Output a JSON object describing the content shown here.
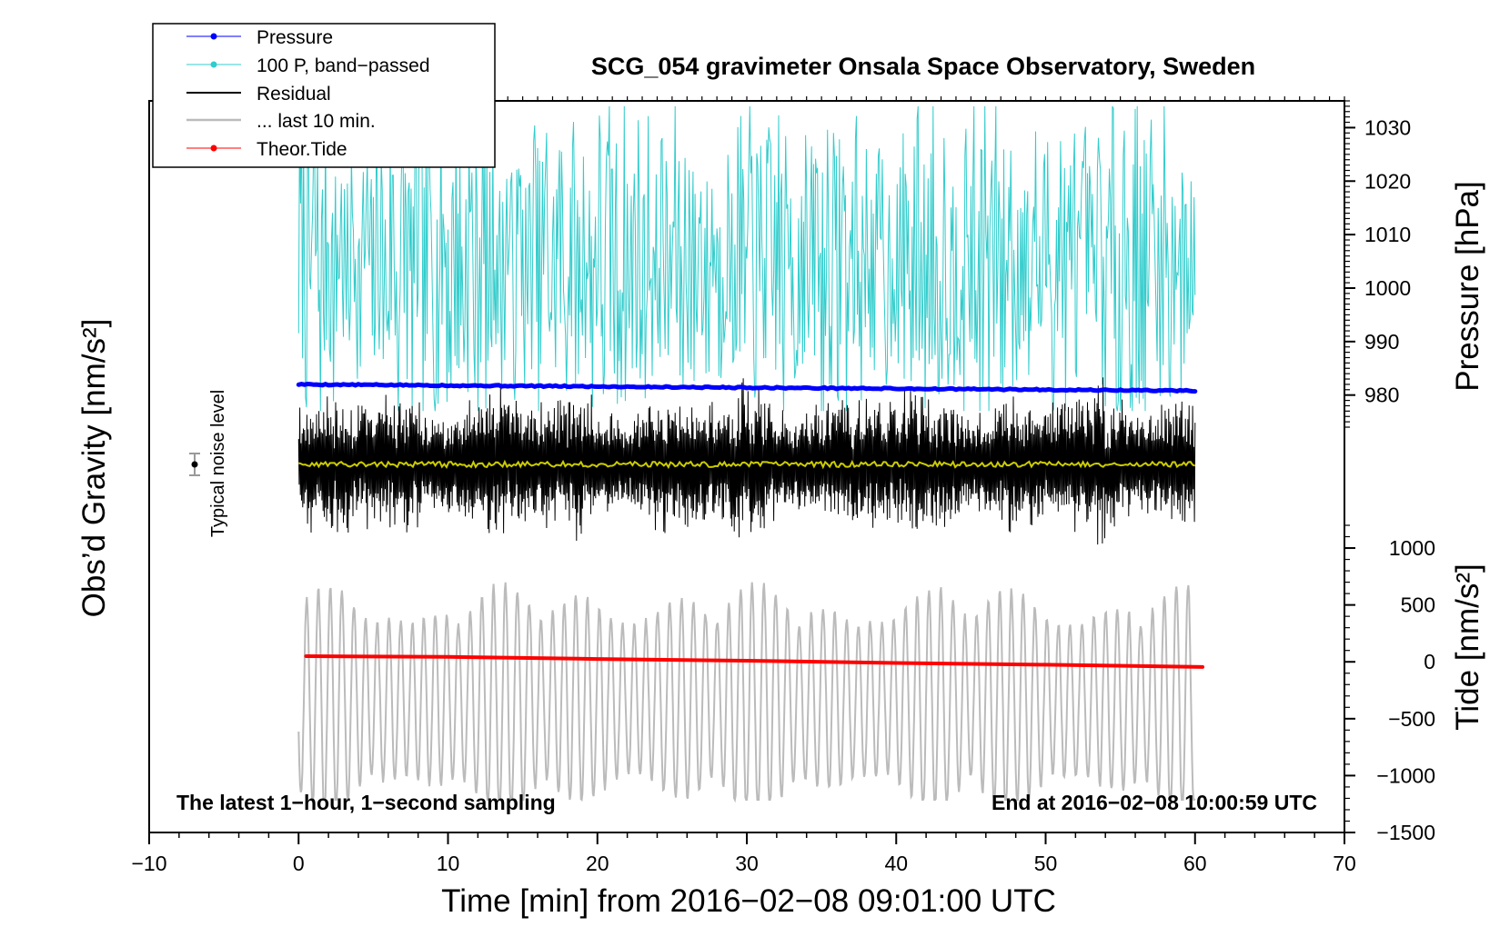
{
  "colors": {
    "pressure": "#0000ff",
    "bandpassed": "#33cccc",
    "residual": "#000000",
    "last10": "#bbbbbb",
    "tide": "#ff0000",
    "yellow": "#cccc00"
  },
  "legend": {
    "pressure": "Pressure",
    "bandpassed": "100 P, band−passed",
    "residual": "Residual",
    "last10": "... last 10 min.",
    "tide": "Theor.Tide"
  },
  "annotations": {
    "left": "The latest 1−hour, 1−second sampling",
    "right": "End at 2016−02−08 10:00:59 UTC",
    "noise": "Typical noise level"
  },
  "chart_data": {
    "type": "line",
    "title": "SCG_054 gravimeter Onsala Space Observatory, Sweden",
    "xlabel": "Time [min] from 2016−02−08 09:01:00 UTC",
    "ylabel_left": "Obs’d Gravity [nm/s²]",
    "ylabel_right_top": "Pressure [hPa]",
    "ylabel_right_bottom": "Tide [nm/s²]",
    "xlim": [
      -10,
      70
    ],
    "x_ticks": [
      "−10",
      "0",
      "10",
      "20",
      "30",
      "40",
      "50",
      "60",
      "70"
    ],
    "pressure_axis": {
      "range": [
        974,
        1035
      ],
      "ticks": [
        "980",
        "990",
        "1000",
        "1010",
        "1020",
        "1030"
      ]
    },
    "tide_axis": {
      "range": [
        -1500,
        1200
      ],
      "ticks": [
        "1000",
        "500",
        "0",
        "−500",
        "−1000",
        "−1500"
      ]
    },
    "series": [
      {
        "name": "Pressure",
        "unit": "hPa",
        "x_range": [
          0,
          60
        ],
        "start": 982.0,
        "end": 980.8
      },
      {
        "name": "Theor.Tide",
        "unit": "nm/s²",
        "x": [
          0.5,
          10,
          20,
          30,
          40,
          50,
          60.5
        ],
        "values": [
          50,
          43,
          25,
          10,
          -10,
          -25,
          -45
        ]
      },
      {
        "name": "100 P, band−passed",
        "x_range": [
          0,
          60
        ],
        "note": "high-frequency band-passed pressure, oscillating about 1005 hPa"
      },
      {
        "name": "Residual",
        "x_range": [
          0,
          60
        ],
        "note": "high-frequency gravity residual"
      },
      {
        "name": "... last 10 min.",
        "x_range": [
          0,
          60
        ],
        "note": "residual of the last 10 minutes, mapped over the hour"
      }
    ]
  }
}
